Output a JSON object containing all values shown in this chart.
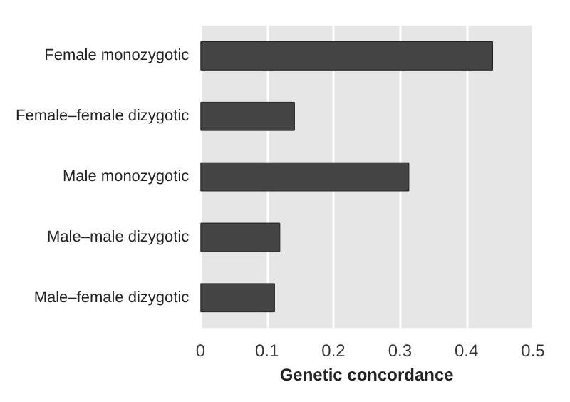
{
  "chart_data": {
    "type": "bar",
    "orientation": "horizontal",
    "xlabel": "Genetic concordance",
    "categories": [
      "Female monozygotic",
      "Female–female dizygotic",
      "Male monozygotic",
      "Male–male dizygotic",
      "Male–female dizygotic"
    ],
    "values": [
      0.44,
      0.142,
      0.314,
      0.12,
      0.112
    ],
    "color": "#444444",
    "xlim": [
      0,
      0.5
    ],
    "xticks": [
      0,
      0.1,
      0.2,
      0.3,
      0.4,
      0.5
    ],
    "grid": "x"
  }
}
